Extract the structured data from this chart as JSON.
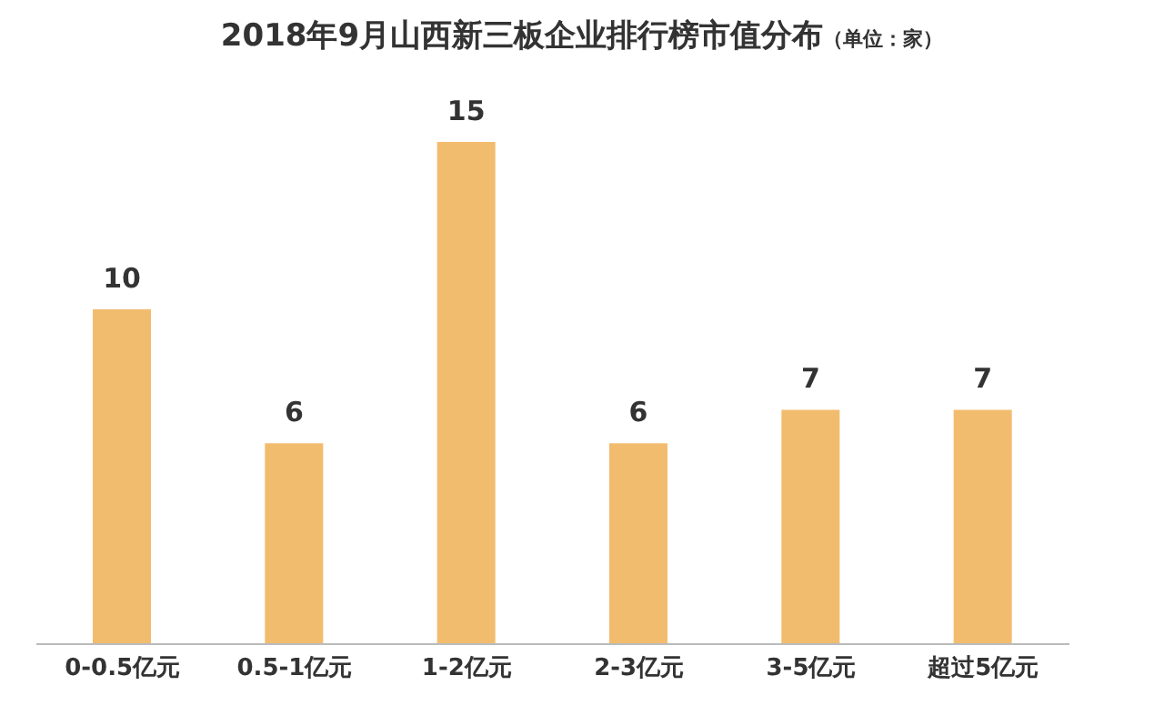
{
  "chart_data": {
    "type": "bar",
    "title": "2018年9月山西新三板企业排行榜市值分布",
    "subtitle": "（单位：家）",
    "categories": [
      "0-0.5亿元",
      "0.5-1亿元",
      "1-2亿元",
      "2-3亿元",
      "3-5亿元",
      "超过5亿元"
    ],
    "values": [
      10,
      6,
      15,
      6,
      7,
      7
    ],
    "color": "#f2bc6e",
    "data_labels": true,
    "grid": false,
    "legend": false
  }
}
